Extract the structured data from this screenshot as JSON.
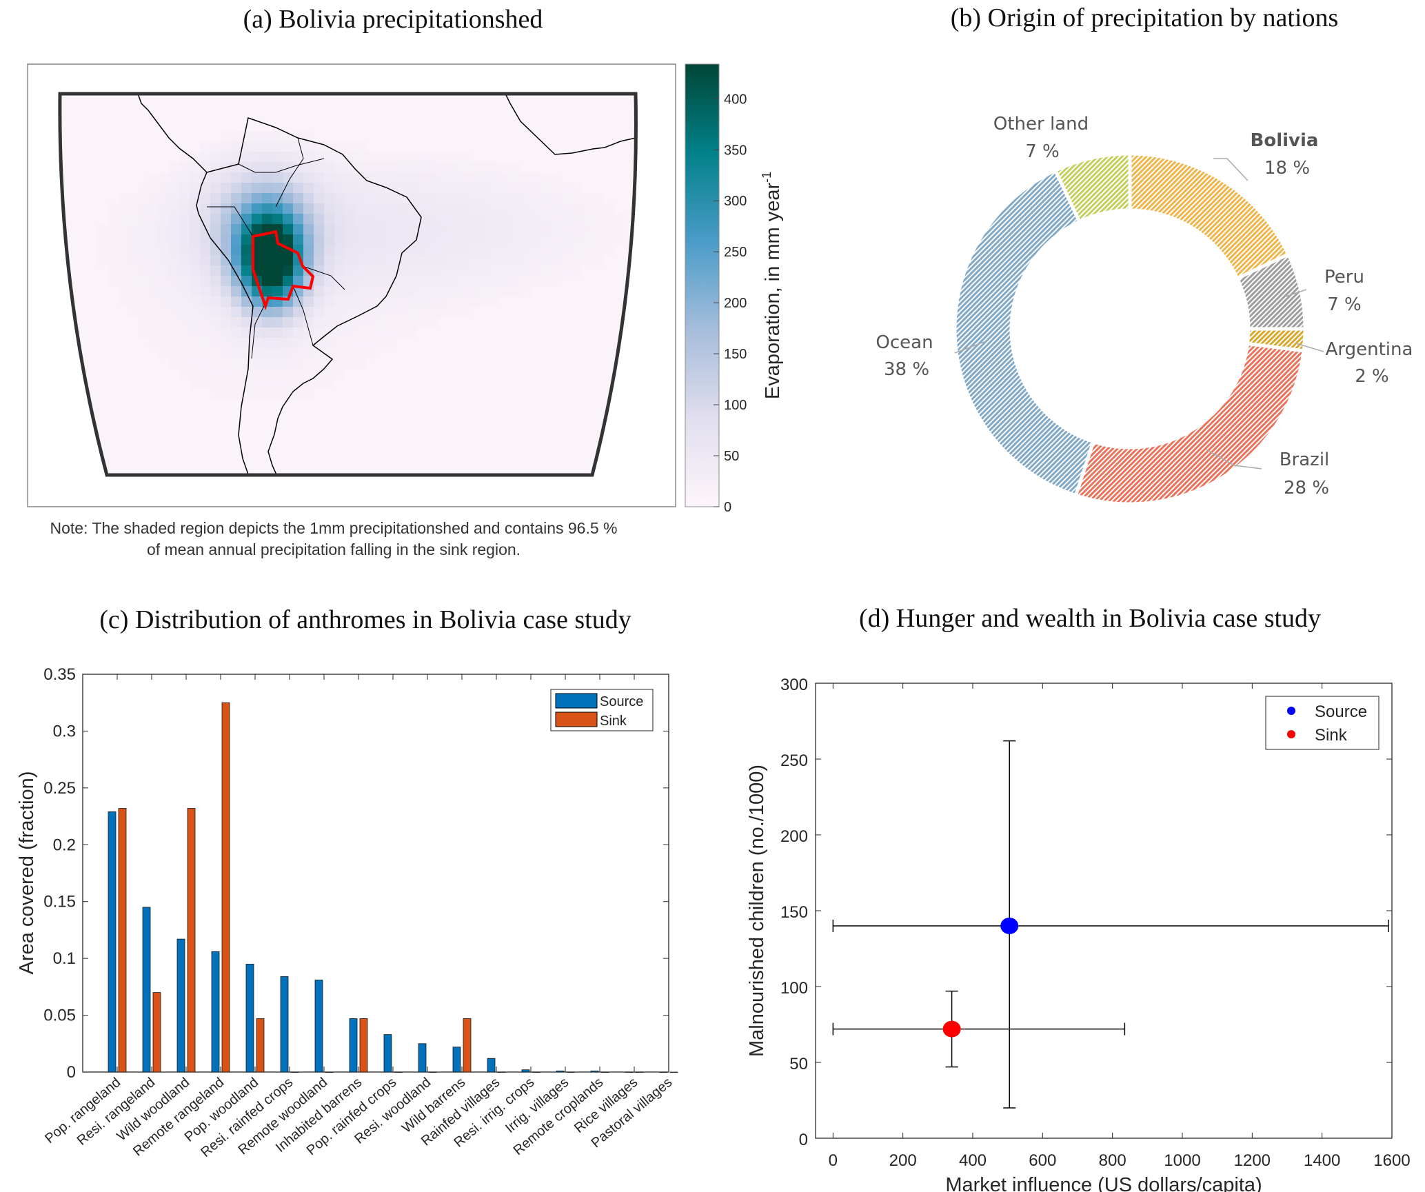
{
  "colors": {
    "source_bar": "#0072bd",
    "sink_bar": "#d95319",
    "source_point": "#0000ff",
    "sink_point": "#ff0000",
    "bolivia_outline": "#ff0000"
  },
  "chart_data": [
    {
      "type": "heatmap",
      "title": "(a) Bolivia precipitationshed",
      "colorbar": {
        "label": "Evaporation, in mm year",
        "label_sup": "-1",
        "ticks": [
          "0",
          "50",
          "100",
          "150",
          "200",
          "250",
          "300",
          "350",
          "400"
        ],
        "range": [
          0,
          434
        ]
      },
      "note": [
        "Note: The shaded region depicts the 1mm precipitationshed and contains 96.5 %",
        "of mean annual precipitation falling in the sink region."
      ]
    },
    {
      "type": "pie",
      "title": "(b) Origin of precipitation by nations",
      "slices": [
        {
          "name": "Bolivia",
          "value": 18,
          "label": "18 %",
          "color": "#f0b54a"
        },
        {
          "name": "Peru",
          "value": 7,
          "label": "7 %",
          "color": "#9e9e9e"
        },
        {
          "name": "Argentina",
          "value": 2,
          "label": "2 %",
          "color": "#d8a82a"
        },
        {
          "name": "Brazil",
          "value": 28,
          "label": "28 %",
          "color": "#e8735a"
        },
        {
          "name": "Ocean",
          "value": 38,
          "label": "38 %",
          "color": "#7fa8c9"
        },
        {
          "name": "Other land",
          "value": 7,
          "label": "7 %",
          "color": "#c3cf5e"
        }
      ]
    },
    {
      "type": "bar",
      "title": "(c) Distribution of anthromes in Bolivia case study",
      "ylabel": "Area covered (fraction)",
      "xlabel": "",
      "ylim": [
        0,
        0.35
      ],
      "yticks": [
        "0",
        "0.05",
        "0.1",
        "0.15",
        "0.2",
        "0.25",
        "0.3",
        "0.35"
      ],
      "categories": [
        "Pop. rangeland",
        "Resi. rangeland",
        "Wild woodland",
        "Remote rangeland",
        "Pop. woodland",
        "Resi. rainfed crops",
        "Remote woodland",
        "Inhabited barrens",
        "Pop. rainfed crops",
        "Resi. woodland",
        "Wild barrens",
        "Rainfed villages",
        "Resi. irrig. crops",
        "Irrig. villages",
        "Remote croplands",
        "Rice villages",
        "Pastoral villages"
      ],
      "series": [
        {
          "name": "Source",
          "values": [
            0.229,
            0.145,
            0.117,
            0.106,
            0.095,
            0.084,
            0.081,
            0.047,
            0.033,
            0.025,
            0.022,
            0.012,
            0.002,
            0.001,
            0.001,
            0,
            0
          ]
        },
        {
          "name": "Sink",
          "values": [
            0.232,
            0.07,
            0.232,
            0.325,
            0.047,
            0,
            0,
            0.047,
            0,
            0,
            0.047,
            0,
            0,
            0,
            0,
            0,
            0
          ]
        }
      ],
      "legend": "top-right"
    },
    {
      "type": "scatter",
      "title": "(d) Hunger and wealth in Bolivia case study",
      "xlabel": "Market influence (US dollars/capita)",
      "ylabel": "Malnourished children (no./1000)",
      "xlim": [
        -50,
        1600
      ],
      "ylim": [
        0,
        300
      ],
      "xticks": [
        "0",
        "200",
        "400",
        "600",
        "800",
        "1000",
        "1200",
        "1400",
        "1600"
      ],
      "yticks": [
        "0",
        "50",
        "100",
        "150",
        "200",
        "250",
        "300"
      ],
      "series": [
        {
          "name": "Source",
          "x": 505,
          "y": 140,
          "xerr": [
            0,
            1590
          ],
          "yerr": [
            20,
            262
          ]
        },
        {
          "name": "Sink",
          "x": 340,
          "y": 72,
          "xerr": [
            0,
            835
          ],
          "yerr": [
            47,
            97
          ]
        }
      ],
      "legend": "top-right"
    }
  ]
}
